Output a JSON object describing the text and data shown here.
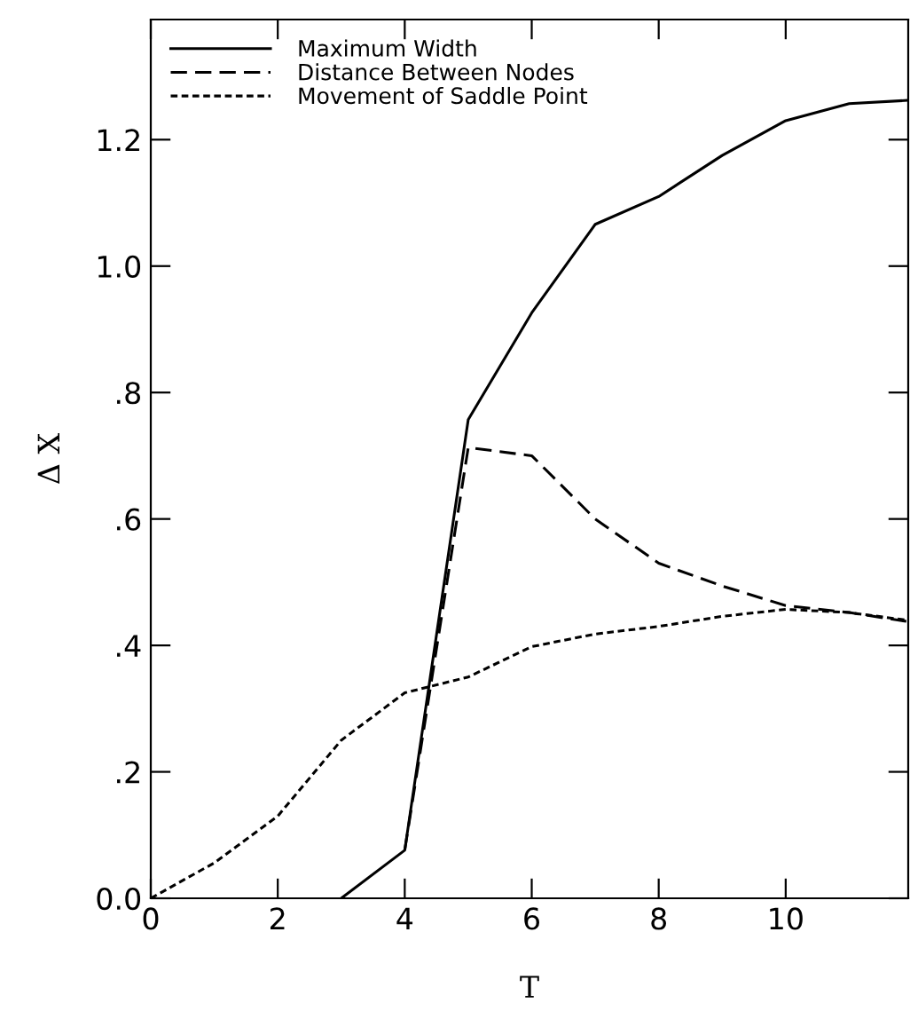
{
  "chart_data": {
    "type": "line",
    "xlabel": "T",
    "ylabel": "Δ X",
    "xlim": [
      0,
      11.93
    ],
    "ylim": [
      0,
      1.39
    ],
    "xticks": [
      0,
      2,
      4,
      6,
      8,
      10
    ],
    "yticks": [
      {
        "value": 0,
        "label": "0.0"
      },
      {
        "value": 0.2,
        "label": ".2"
      },
      {
        "value": 0.4,
        "label": ".4"
      },
      {
        "value": 0.6,
        "label": ".6"
      },
      {
        "value": 0.8,
        "label": ".8"
      },
      {
        "value": 1.0,
        "label": "1.0"
      },
      {
        "value": 1.2,
        "label": "1.2"
      }
    ],
    "legend": "top left",
    "grid": false,
    "marker": "none",
    "series": [
      {
        "name": "Maximum Width",
        "color": "#000000",
        "line_style": "solid",
        "x": [
          3,
          4,
          5,
          6,
          7,
          8,
          9,
          10,
          11,
          11.9
        ],
        "values": [
          0,
          0.076,
          0.757,
          0.926,
          1.066,
          1.11,
          1.175,
          1.23,
          1.257,
          1.262
        ]
      },
      {
        "name": "Distance Between Nodes",
        "color": "#000000",
        "line_style": "dashed",
        "x": [
          4,
          5,
          6,
          7,
          8,
          9,
          10,
          11,
          11.9
        ],
        "values": [
          0.076,
          0.713,
          0.7,
          0.6,
          0.53,
          0.494,
          0.463,
          0.452,
          0.438
        ]
      },
      {
        "name": "Movement of Saddle Point",
        "color": "#000000",
        "line_style": "dotted",
        "x": [
          0,
          1,
          2,
          3,
          4,
          5,
          6,
          7,
          8,
          9,
          10,
          11,
          11.9
        ],
        "values": [
          0,
          0.056,
          0.13,
          0.25,
          0.325,
          0.35,
          0.398,
          0.418,
          0.43,
          0.446,
          0.457,
          0.452,
          0.44
        ]
      }
    ]
  }
}
